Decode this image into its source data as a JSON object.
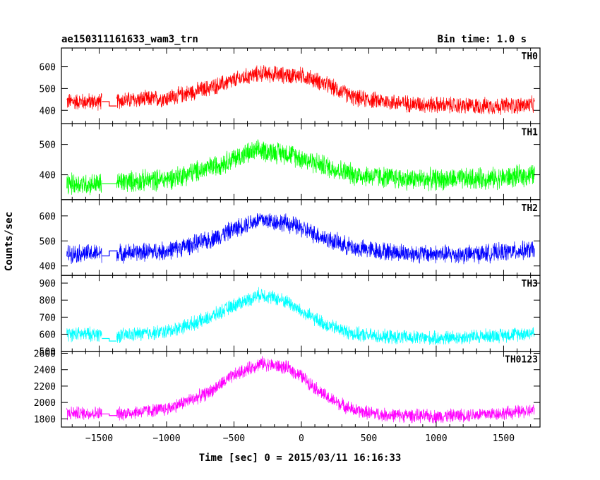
{
  "header": {
    "title": "ae150311161633_wam3_trn",
    "bin_time": "Bin time: 1.0 s"
  },
  "chart_data": {
    "type": "line",
    "xlabel": "Time [sec] 0 = 2015/03/11 16:16:33",
    "ylabel": "Counts/sec",
    "xlim": [
      -1780,
      1770
    ],
    "x_ticks": [
      -1500,
      -1000,
      -500,
      0,
      500,
      1000,
      1500
    ],
    "x_tick_labels": [
      "−1500",
      "−1000",
      "−500",
      "0",
      "500",
      "1000",
      "1500"
    ],
    "gap": [
      -1480,
      -1370
    ],
    "series": [
      {
        "name": "TH0",
        "color": "#ff0000",
        "ylim": [
          338,
          686
        ],
        "y_ticks": [
          400,
          500,
          600
        ],
        "y_tick_labels": [
          "400",
          "500",
          "600"
        ],
        "profile": {
          "x": [
            -1740,
            -1480,
            -1370,
            -1000,
            -700,
            -400,
            -300,
            -100,
            0,
            100,
            250,
            400,
            800,
            1200,
            1500,
            1730
          ],
          "y": [
            440,
            440,
            445,
            455,
            500,
            555,
            570,
            560,
            560,
            540,
            500,
            455,
            430,
            420,
            420,
            425
          ]
        },
        "noise": 35,
        "gap_levels": [
          440,
          420
        ]
      },
      {
        "name": "TH1",
        "color": "#00ff00",
        "ylim": [
          318,
          568
        ],
        "y_ticks": [
          400,
          500
        ],
        "y_tick_labels": [
          "400",
          "500"
        ],
        "profile": {
          "x": [
            -1740,
            -1480,
            -1370,
            -1000,
            -700,
            -400,
            -300,
            -100,
            0,
            200,
            400,
            800,
            1200,
            1500,
            1730
          ],
          "y": [
            370,
            370,
            375,
            385,
            420,
            470,
            480,
            470,
            455,
            425,
            400,
            385,
            385,
            390,
            400
          ]
        },
        "noise": 32,
        "gap_levels": [
          370,
          370
        ]
      },
      {
        "name": "TH2",
        "color": "#0000ff",
        "ylim": [
          362,
          665
        ],
        "y_ticks": [
          400,
          500,
          600
        ],
        "y_tick_labels": [
          "400",
          "500",
          "600"
        ],
        "profile": {
          "x": [
            -1740,
            -1480,
            -1370,
            -1000,
            -700,
            -400,
            -300,
            -100,
            0,
            200,
            400,
            800,
            1200,
            1500,
            1730
          ],
          "y": [
            450,
            450,
            450,
            460,
            500,
            570,
            585,
            570,
            550,
            505,
            470,
            450,
            445,
            455,
            465
          ]
        },
        "noise": 33,
        "gap_levels": [
          440,
          460
        ]
      },
      {
        "name": "TH3",
        "color": "#00ffff",
        "ylim": [
          500,
          945
        ],
        "y_ticks": [
          500,
          600,
          700,
          800,
          900
        ],
        "y_tick_labels": [
          "500",
          "600",
          "700",
          "800",
          "900"
        ],
        "profile": {
          "x": [
            -1740,
            -1480,
            -1370,
            -1000,
            -700,
            -500,
            -300,
            -100,
            0,
            200,
            400,
            600,
            1000,
            1500,
            1730
          ],
          "y": [
            600,
            600,
            590,
            615,
            690,
            770,
            835,
            790,
            730,
            650,
            600,
            585,
            575,
            595,
            610
          ]
        },
        "noise": 38,
        "gap_levels": [
          575,
          560
        ]
      },
      {
        "name": "TH0123",
        "color": "#ff00ff",
        "ylim": [
          1700,
          2625
        ],
        "y_ticks": [
          1800,
          2000,
          2200,
          2400,
          2600
        ],
        "y_tick_labels": [
          "1800",
          "2000",
          "2200",
          "2400",
          "2600"
        ],
        "profile": {
          "x": [
            -1740,
            -1480,
            -1370,
            -1000,
            -700,
            -500,
            -300,
            -100,
            0,
            200,
            400,
            600,
            1000,
            1500,
            1730
          ],
          "y": [
            1870,
            1870,
            1860,
            1920,
            2110,
            2330,
            2480,
            2420,
            2320,
            2050,
            1900,
            1850,
            1830,
            1870,
            1900
          ]
        },
        "noise": 75,
        "gap_levels": [
          1860,
          1840
        ]
      }
    ]
  }
}
